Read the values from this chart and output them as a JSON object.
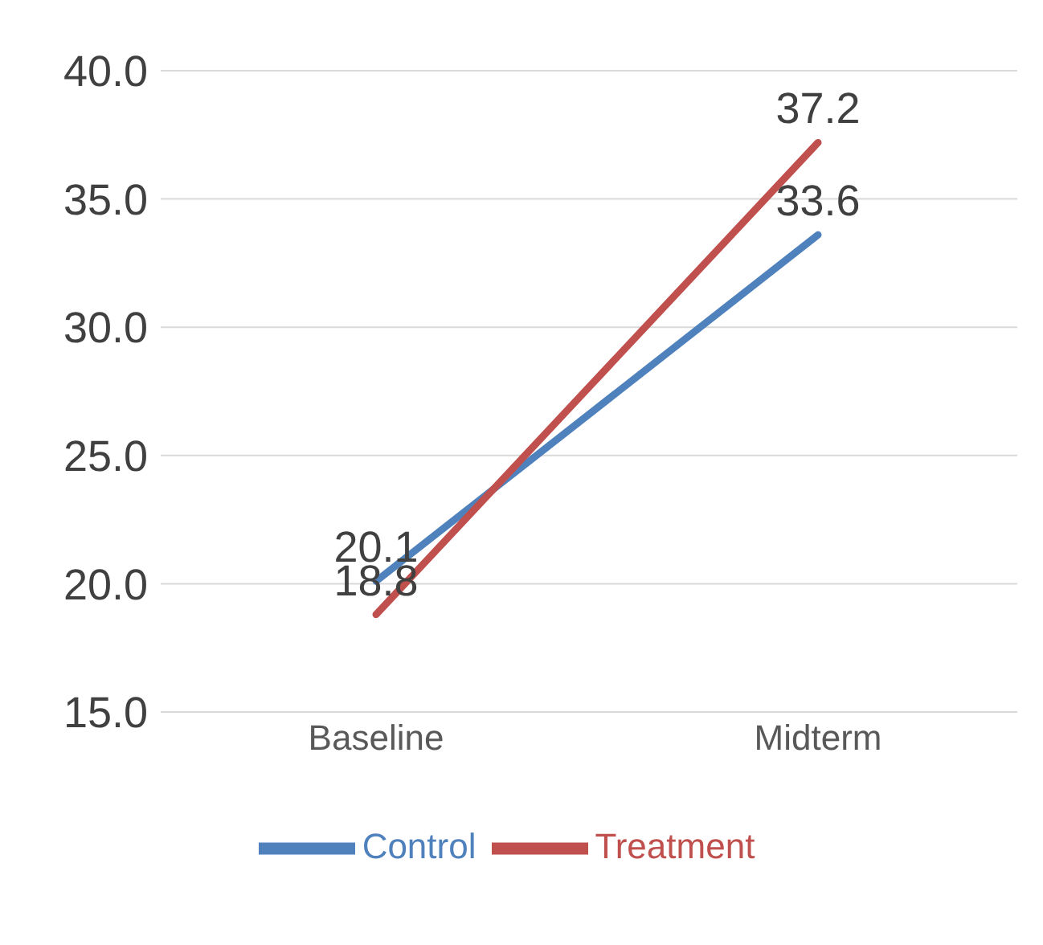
{
  "chart_data": {
    "type": "line",
    "categories": [
      "Baseline",
      "Midterm"
    ],
    "series": [
      {
        "name": "Control",
        "color": "#4f81bd",
        "values": [
          20.1,
          33.6
        ]
      },
      {
        "name": "Treatment",
        "color": "#c0504d",
        "values": [
          18.8,
          37.2
        ]
      }
    ],
    "ylim": [
      15,
      40
    ],
    "yticks": [
      {
        "value": 15,
        "label": "15.0"
      },
      {
        "value": 20,
        "label": "20.0"
      },
      {
        "value": 25,
        "label": "25.0"
      },
      {
        "value": 30,
        "label": "30.0"
      },
      {
        "value": 35,
        "label": "35.0"
      },
      {
        "value": 40,
        "label": "40.0"
      }
    ],
    "grid": "y",
    "legend": "bottom",
    "data_labels": true,
    "marker": "none",
    "line_style": "solid"
  }
}
